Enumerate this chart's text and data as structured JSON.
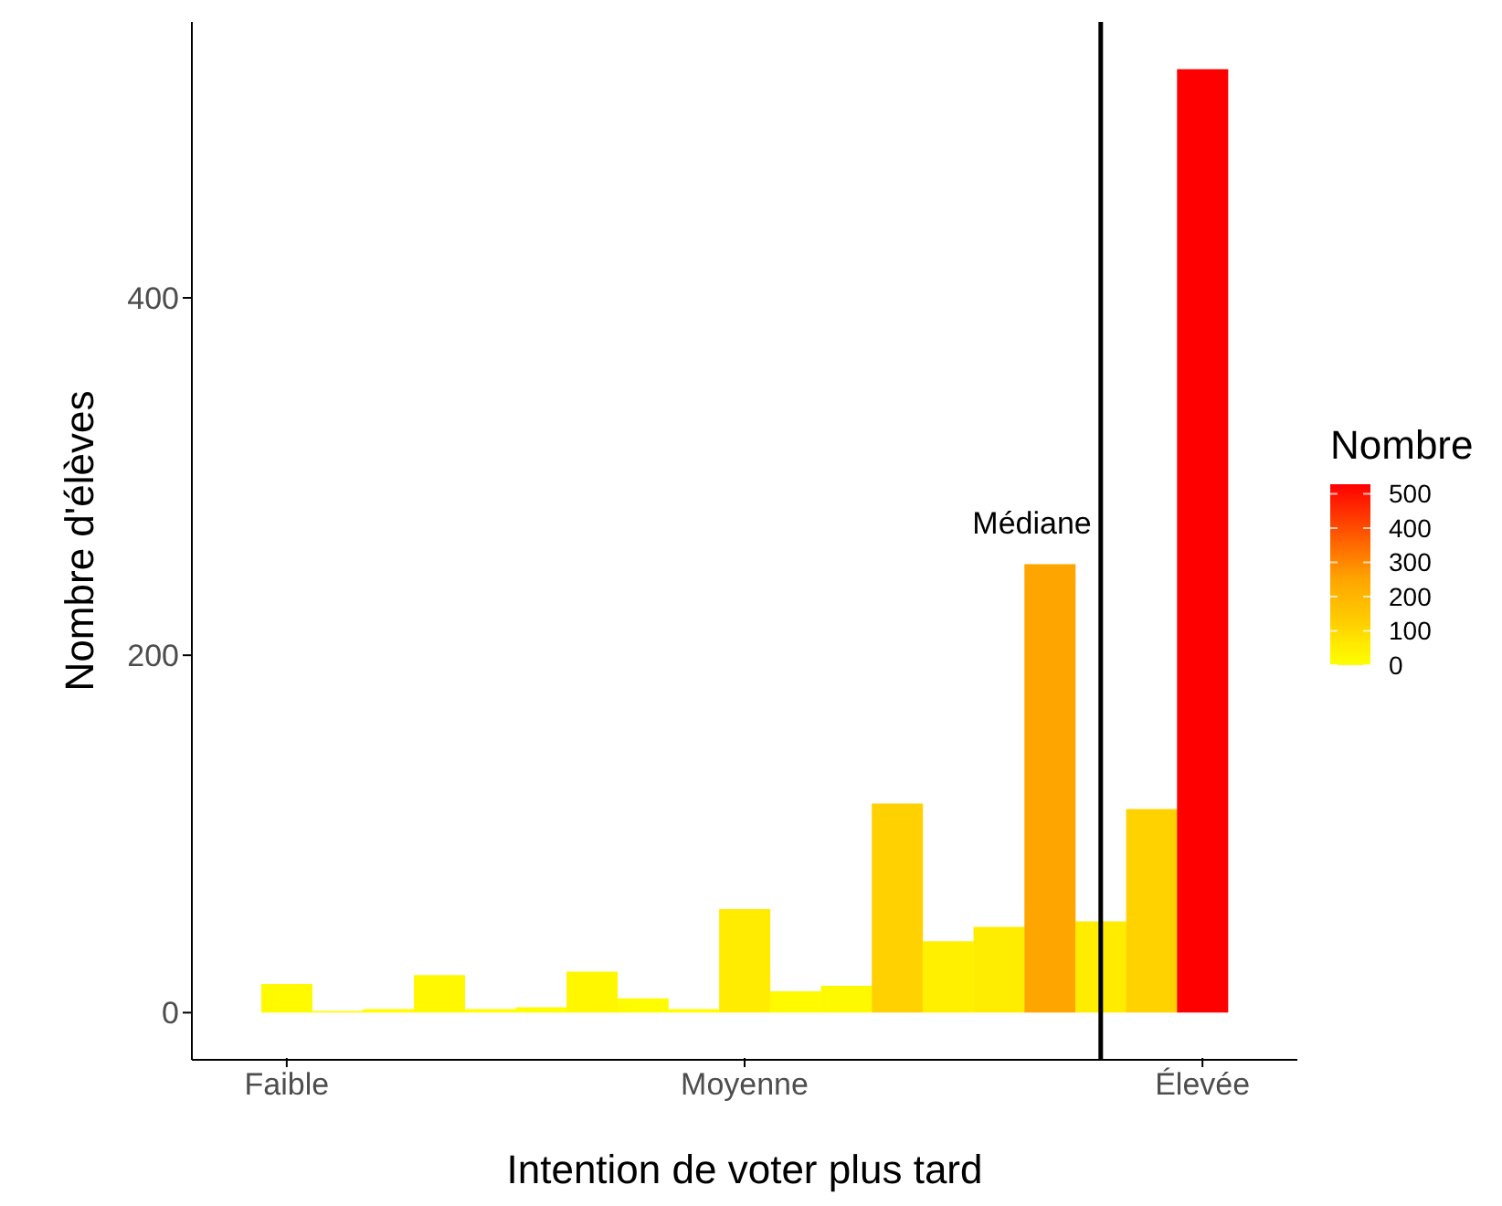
{
  "chart_data": {
    "type": "bar",
    "xlabel": "Intention de voter plus tard",
    "ylabel": "Nombre d'élèves",
    "clabel": "Nombre",
    "categories": [
      "Faible",
      null,
      null,
      null,
      null,
      null,
      null,
      null,
      null,
      "Moyenne",
      null,
      null,
      null,
      null,
      null,
      null,
      null,
      null,
      "Élevée"
    ],
    "values": [
      16,
      1,
      2,
      21,
      2,
      3,
      23,
      8,
      2,
      58,
      12,
      15,
      117,
      40,
      48,
      251,
      51,
      114,
      528
    ],
    "colors": [
      "#fffa00",
      "#fffe00",
      "#fffe00",
      "#fff800",
      "#fffe00",
      "#fffd00",
      "#fff700",
      "#fffc00",
      "#fffe00",
      "#ffec00",
      "#fffa00",
      "#fff900",
      "#ffd100",
      "#fff000",
      "#ffed00",
      "#ffa500",
      "#ffec00",
      "#ffd200",
      "#ff0000"
    ],
    "ylim": [
      -26.4,
      554.4
    ],
    "yticks": [
      0,
      200,
      400
    ],
    "clim": [
      0,
      528
    ],
    "cticks": [
      0,
      100,
      200,
      300,
      400,
      500
    ],
    "annotations": [
      "Médiane"
    ]
  }
}
